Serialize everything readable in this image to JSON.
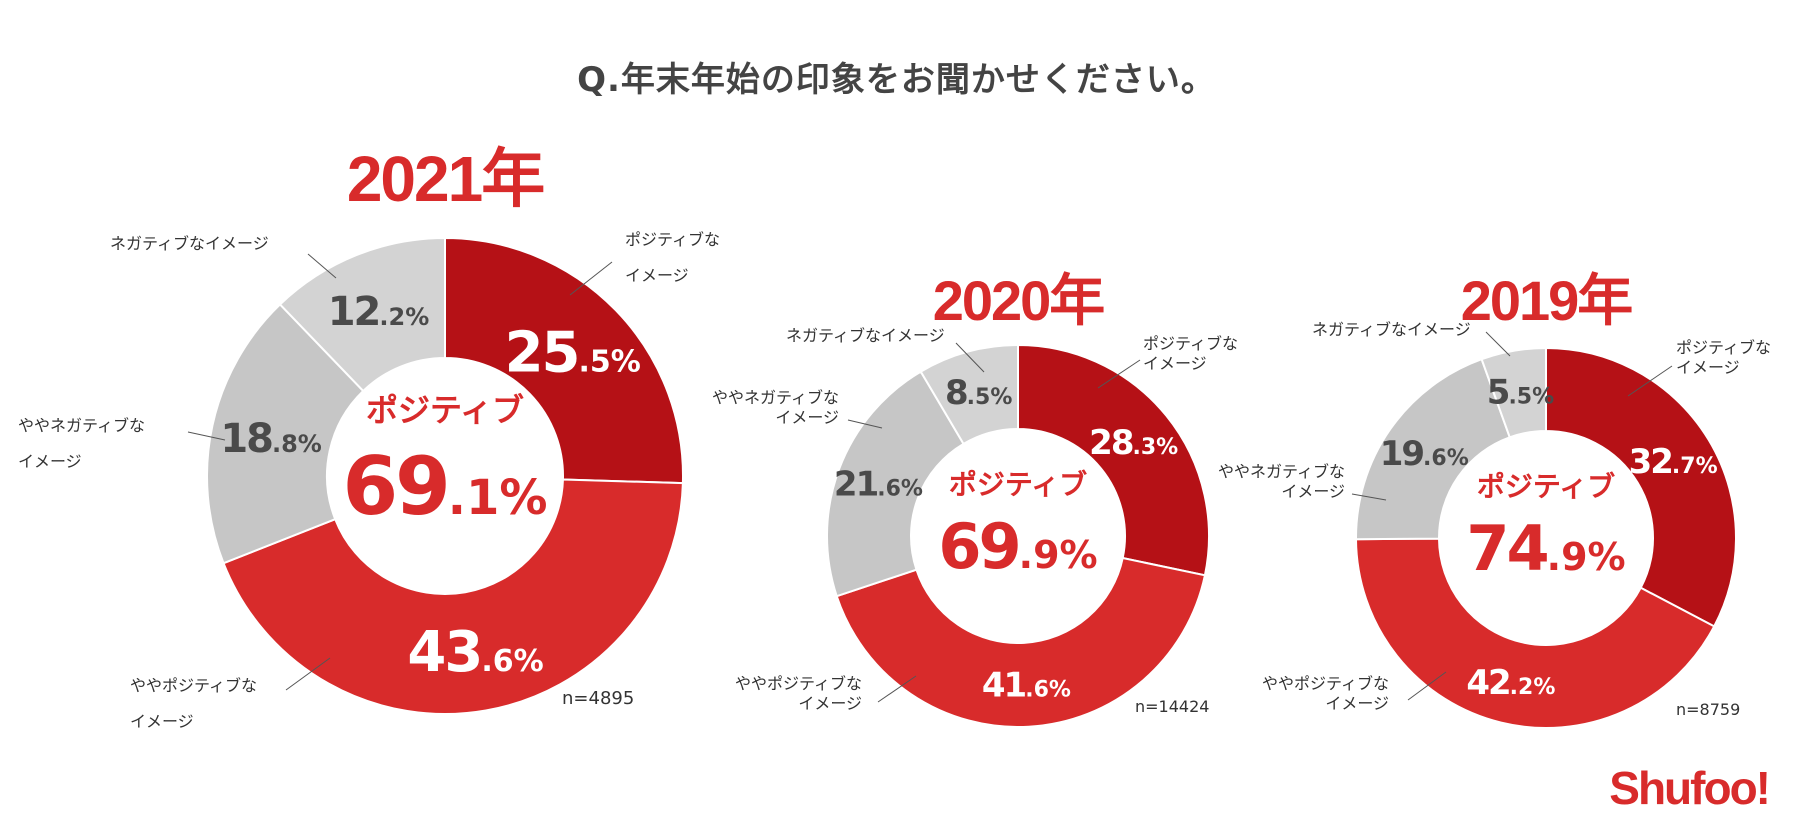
{
  "title": "Q.年末年始の印象をお聞かせください。",
  "logo": "Shufoo!",
  "colors": {
    "positive": "#b51116",
    "somewhat_positive": "#d82b2b",
    "somewhat_negative": "#c6c6c6",
    "negative": "#d3d3d3",
    "center_text": "#d82b2b",
    "gray_text": "#4a4a4a"
  },
  "chart_data": [
    {
      "type": "pie",
      "title": "2021年",
      "center_label": "ポジティブ",
      "center_int": "69",
      "center_dec": ".1%",
      "n": "n=4895",
      "categories": [
        "ポジティブなイメージ",
        "ややポジティブなイメージ",
        "ややネガティブなイメージ",
        "ネガティブなイメージ"
      ],
      "values": [
        25.5,
        43.6,
        18.8,
        12.2
      ],
      "label_lines": [
        [
          "ポジティブな",
          "イメージ"
        ],
        [
          "ややポジティブな",
          "イメージ"
        ],
        [
          "ややネガティブな",
          "イメージ"
        ],
        [
          "ネガティブなイメージ"
        ]
      ],
      "value_int": [
        "25",
        "43",
        "18",
        "12"
      ],
      "value_dec": [
        ".5%",
        ".6%",
        ".8%",
        ".2%"
      ]
    },
    {
      "type": "pie",
      "title": "2020年",
      "center_label": "ポジティブ",
      "center_int": "69",
      "center_dec": ".9%",
      "n": "n=14424",
      "categories": [
        "ポジティブなイメージ",
        "ややポジティブなイメージ",
        "ややネガティブなイメージ",
        "ネガティブなイメージ"
      ],
      "values": [
        28.3,
        41.6,
        21.6,
        8.5
      ],
      "label_lines": [
        [
          "ポジティブな",
          "イメージ"
        ],
        [
          "ややポジティブな",
          "イメージ"
        ],
        [
          "ややネガティブな",
          "イメージ"
        ],
        [
          "ネガティブなイメージ"
        ]
      ],
      "value_int": [
        "28",
        "41",
        "21",
        "8"
      ],
      "value_dec": [
        ".3%",
        ".6%",
        ".6%",
        ".5%"
      ]
    },
    {
      "type": "pie",
      "title": "2019年",
      "center_label": "ポジティブ",
      "center_int": "74",
      "center_dec": ".9%",
      "n": "n=8759",
      "categories": [
        "ポジティブなイメージ",
        "ややポジティブなイメージ",
        "ややネガティブなイメージ",
        "ネガティブなイメージ"
      ],
      "values": [
        32.7,
        42.2,
        19.6,
        5.5
      ],
      "label_lines": [
        [
          "ポジティブな",
          "イメージ"
        ],
        [
          "ややポジティブな",
          "イメージ"
        ],
        [
          "ややネガティブな",
          "イメージ"
        ],
        [
          "ネガティブなイメージ"
        ]
      ],
      "value_int": [
        "32",
        "42",
        "19",
        "5"
      ],
      "value_dec": [
        ".7%",
        ".2%",
        ".6%",
        ".5%"
      ]
    }
  ]
}
